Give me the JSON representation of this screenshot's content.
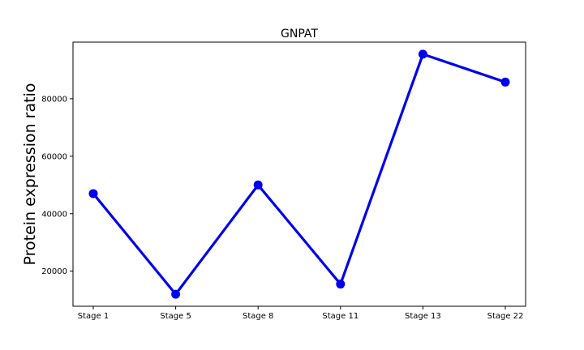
{
  "chart_data": {
    "type": "line",
    "title": "GNPAT",
    "xlabel": "",
    "ylabel": "Protein expression ratio",
    "categories": [
      "Stage 1",
      "Stage 5",
      "Stage 8",
      "Stage 11",
      "Stage 13",
      "Stage 22"
    ],
    "series": [
      {
        "values": [
          47000,
          12000,
          50000,
          15500,
          95500,
          85800
        ]
      }
    ],
    "ylim": [
      7800,
      99700
    ],
    "yticks": [
      20000,
      40000,
      60000,
      80000
    ],
    "ytick_labels": [
      "20000",
      "40000",
      "60000",
      "80000"
    ],
    "grid": false,
    "line_color": "#0000ee"
  }
}
